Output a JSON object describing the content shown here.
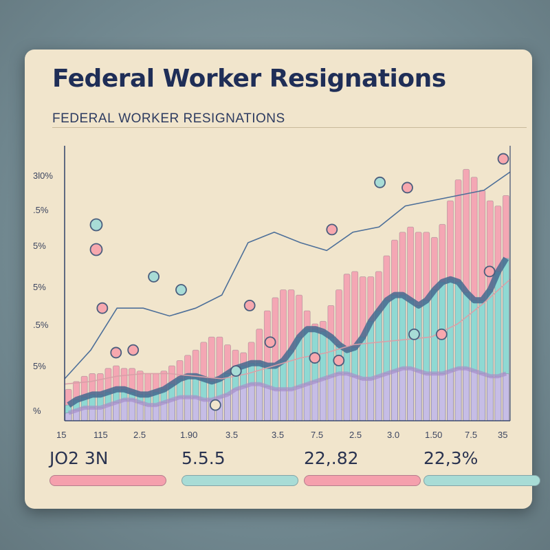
{
  "chart_data": {
    "type": "bar",
    "title": "Federal Worker Resignations",
    "subtitle": "FEDERAL WORKER RESIGNATIONS",
    "y_ticks": [
      "3l0%",
      ".5%",
      "5%",
      "5%",
      ".5%",
      "5%",
      "%"
    ],
    "x_ticks": [
      "15",
      "115",
      "2.5",
      "1.90",
      "3.5",
      "3.5",
      "7.5",
      "2.5",
      "3.0",
      "1.50",
      "7.5",
      "35"
    ],
    "grid": false,
    "legend_position": "left",
    "series": [
      {
        "color": "#f4a7b4",
        "values": [
          12,
          15,
          17,
          18,
          18,
          20,
          21,
          20,
          20,
          19,
          18,
          18,
          19,
          21,
          23,
          25,
          27,
          30,
          32,
          32,
          29,
          27,
          26,
          30,
          35,
          42,
          47,
          50,
          50,
          48,
          42,
          37,
          38,
          44,
          50,
          56,
          57,
          55,
          55,
          57,
          63,
          69,
          72,
          74,
          72,
          72,
          70,
          75,
          84,
          92,
          96,
          93,
          88,
          84,
          82,
          86
        ]
      },
      {
        "color": "#8fd9d3",
        "values": [
          6,
          8,
          9,
          10,
          10,
          11,
          12,
          12,
          11,
          10,
          10,
          11,
          12,
          14,
          16,
          17,
          17,
          16,
          15,
          16,
          18,
          20,
          21,
          22,
          22,
          21,
          21,
          23,
          27,
          32,
          35,
          35,
          34,
          32,
          29,
          27,
          28,
          32,
          38,
          42,
          46,
          48,
          48,
          46,
          44,
          46,
          50,
          53,
          54,
          53,
          49,
          46,
          46,
          50,
          57,
          62
        ]
      },
      {
        "color": "#c6bde6",
        "values": [
          3,
          4,
          5,
          5,
          5,
          6,
          7,
          8,
          8,
          7,
          6,
          6,
          7,
          8,
          9,
          9,
          9,
          8,
          8,
          9,
          10,
          12,
          13,
          14,
          14,
          13,
          12,
          12,
          12,
          13,
          14,
          15,
          16,
          17,
          18,
          18,
          17,
          16,
          16,
          17,
          18,
          19,
          20,
          20,
          19,
          18,
          18,
          18,
          19,
          20,
          20,
          19,
          18,
          17,
          17,
          18
        ]
      }
    ],
    "lines": [
      {
        "color": "#4d6f99",
        "values": [
          16,
          27,
          43,
          43,
          40,
          43,
          48,
          68,
          72,
          68,
          65,
          72,
          74,
          82,
          84,
          86,
          88,
          95
        ]
      },
      {
        "color": "#d9a0a8",
        "values": [
          14,
          15,
          17,
          18,
          18,
          17,
          16,
          18,
          21,
          24,
          26,
          29,
          30,
          31,
          32,
          37,
          45,
          54
        ]
      }
    ],
    "markers": [
      {
        "x": 5.5,
        "y": 43,
        "color": "#f7a8ae"
      },
      {
        "x": 7.5,
        "y": 26,
        "color": "#f7a8ae"
      },
      {
        "x": 10,
        "y": 27,
        "color": "#f7a8ae"
      },
      {
        "x": 13,
        "y": 55,
        "color": "#a8dcd6"
      },
      {
        "x": 17,
        "y": 50,
        "color": "#a8dcd6"
      },
      {
        "x": 22,
        "y": 6,
        "color": "#f1e5cc"
      },
      {
        "x": 25,
        "y": 19,
        "color": "#a8dcd6"
      },
      {
        "x": 27,
        "y": 44,
        "color": "#f7a8ae"
      },
      {
        "x": 30,
        "y": 30,
        "color": "#f7a8ae"
      },
      {
        "x": 36.5,
        "y": 24,
        "color": "#f7a8ae"
      },
      {
        "x": 39,
        "y": 73,
        "color": "#f7a8ae"
      },
      {
        "x": 40,
        "y": 23,
        "color": "#f7a8ae"
      },
      {
        "x": 46,
        "y": 91,
        "color": "#a8dcd6"
      },
      {
        "x": 50,
        "y": 89,
        "color": "#f7a8ae"
      },
      {
        "x": 51,
        "y": 33,
        "color": "#a8dcd6"
      },
      {
        "x": 55,
        "y": 33,
        "color": "#f7a8ae"
      },
      {
        "x": 62,
        "y": 57,
        "color": "#f7a8ae"
      },
      {
        "x": 64,
        "y": 100,
        "color": "#f7a8ae"
      }
    ],
    "legend_markers": [
      {
        "color": "#a8dcd6"
      },
      {
        "color": "#f7a8ae"
      }
    ],
    "ylim": [
      0,
      105
    ],
    "xlim": [
      0,
      65
    ]
  },
  "stats": [
    {
      "value": "JO2 3N",
      "color": "#f5a0ad"
    },
    {
      "value": "5.5.5",
      "color": "#a8dcd6"
    },
    {
      "value": "22,.82",
      "color": "#f5a0ad"
    },
    {
      "value": "22,3%",
      "color": "#a8dcd6"
    }
  ]
}
